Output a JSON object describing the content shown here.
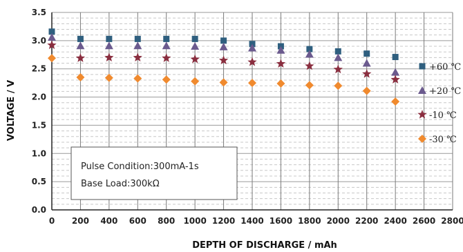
{
  "chart_data": {
    "type": "scatter",
    "title": "",
    "xlabel": "DEPTH OF DISCHARGE / mAh",
    "ylabel": "VOLTAGE / V",
    "xlim": [
      0,
      2800
    ],
    "ylim": [
      0.0,
      3.5
    ],
    "x_ticks": [
      "0",
      "200",
      "400",
      "600",
      "800",
      "1000",
      "1200",
      "1400",
      "1600",
      "1800",
      "2000",
      "2200",
      "2400",
      "2600",
      "2800"
    ],
    "y_ticks": [
      "0.0",
      "0.5",
      "1.0",
      "1.5",
      "2.0",
      "2.5",
      "3.0",
      "3.5"
    ],
    "grid": true,
    "legend_position": "right",
    "x": [
      0,
      200,
      400,
      600,
      800,
      1000,
      1200,
      1400,
      1600,
      1800,
      2000,
      2200,
      2400
    ],
    "series": [
      {
        "name": "+60 ℃",
        "marker": "square",
        "color": "#2f5f7f",
        "values": [
          3.16,
          3.03,
          3.03,
          3.03,
          3.03,
          3.03,
          3.0,
          2.94,
          2.9,
          2.85,
          2.81,
          2.77,
          2.71
        ]
      },
      {
        "name": "+20 ℃",
        "marker": "triangle",
        "color": "#6b5a8e",
        "values": [
          3.06,
          2.91,
          2.91,
          2.91,
          2.91,
          2.9,
          2.89,
          2.87,
          2.83,
          2.76,
          2.7,
          2.6,
          2.44
        ]
      },
      {
        "name": "-10 ℃",
        "marker": "star",
        "color": "#8a2e3f",
        "values": [
          2.92,
          2.69,
          2.7,
          2.7,
          2.69,
          2.67,
          2.65,
          2.62,
          2.59,
          2.55,
          2.49,
          2.41,
          2.31
        ]
      },
      {
        "name": "-30 ℃",
        "marker": "diamond",
        "color": "#f08a2e",
        "values": [
          2.69,
          2.35,
          2.34,
          2.33,
          2.31,
          2.28,
          2.26,
          2.25,
          2.24,
          2.21,
          2.2,
          2.11,
          1.92
        ]
      }
    ],
    "annotations": [
      "Pulse Condition:300mA-1s",
      "Base Load:300kΩ"
    ]
  }
}
